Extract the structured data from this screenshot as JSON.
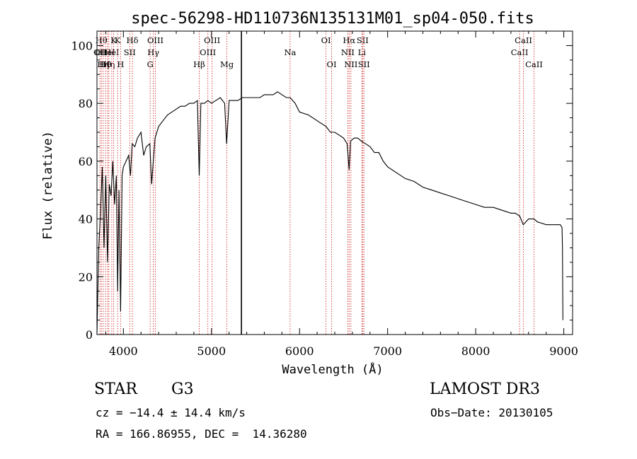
{
  "chart_data": {
    "type": "line",
    "title": "spec-56298-HD110736N135131M01_sp04-050.fits",
    "xlabel": "Wavelength (Å)",
    "ylabel": "Flux (relative)",
    "xlim": [
      3700,
      9100
    ],
    "ylim": [
      0,
      105
    ],
    "xticks": [
      4000,
      5000,
      6000,
      7000,
      8000,
      9000
    ],
    "yticks": [
      0,
      20,
      40,
      60,
      80,
      100
    ],
    "grid": false,
    "series": [
      {
        "name": "flux",
        "x": [
          3700,
          3720,
          3740,
          3760,
          3780,
          3800,
          3820,
          3840,
          3860,
          3880,
          3900,
          3920,
          3935,
          3950,
          3968,
          3985,
          4000,
          4030,
          4060,
          4080,
          4100,
          4130,
          4160,
          4200,
          4230,
          4260,
          4300,
          4320,
          4340,
          4360,
          4400,
          4450,
          4500,
          4550,
          4600,
          4650,
          4700,
          4750,
          4800,
          4840,
          4861,
          4880,
          4920,
          4960,
          5000,
          5050,
          5100,
          5150,
          5172,
          5200,
          5250,
          5300,
          5350,
          5400,
          5450,
          5500,
          5550,
          5600,
          5650,
          5700,
          5750,
          5800,
          5850,
          5893,
          5950,
          6000,
          6100,
          6200,
          6300,
          6350,
          6400,
          6450,
          6500,
          6540,
          6563,
          6580,
          6620,
          6660,
          6700,
          6750,
          6800,
          6850,
          6900,
          6950,
          7000,
          7100,
          7200,
          7300,
          7400,
          7500,
          7600,
          7700,
          7800,
          7900,
          8000,
          8100,
          8200,
          8300,
          8400,
          8450,
          8500,
          8540,
          8600,
          8662,
          8700,
          8800,
          8900,
          8960,
          8980,
          8985,
          8990
        ],
        "values": [
          0,
          30,
          42,
          58,
          30,
          55,
          25,
          52,
          48,
          60,
          45,
          55,
          15,
          50,
          8,
          55,
          58,
          60,
          62,
          55,
          66,
          65,
          68,
          70,
          62,
          65,
          66,
          52,
          60,
          68,
          72,
          74,
          76,
          77,
          78,
          79,
          79,
          80,
          80,
          81,
          55,
          80,
          80,
          81,
          80,
          81,
          82,
          80,
          66,
          81,
          81,
          81,
          82,
          82,
          82,
          82,
          82,
          83,
          83,
          83,
          84,
          83,
          82,
          82,
          80,
          77,
          76,
          74,
          72,
          70,
          70,
          69,
          68,
          66,
          57,
          67,
          68,
          68,
          67,
          66,
          65,
          63,
          63,
          60,
          58,
          56,
          54,
          53,
          51,
          50,
          49,
          48,
          47,
          46,
          45,
          44,
          44,
          43,
          42,
          42,
          41,
          38,
          40,
          40,
          39,
          38,
          38,
          38,
          37,
          30,
          5
        ]
      }
    ],
    "spike": {
      "x": 5340,
      "from": 0,
      "to": 105
    },
    "lines": [
      {
        "x": 3734,
        "label": "OII",
        "row": 2
      },
      {
        "x": 3750,
        "label": "Hθ",
        "row": 1
      },
      {
        "x": 3750,
        "label": "OII",
        "row": 2
      },
      {
        "x": 3771,
        "label": "Hη",
        "row": 3
      },
      {
        "x": 3797,
        "label": "Hθ",
        "row": 3
      },
      {
        "x": 3820,
        "label": "HeI",
        "row": 2
      },
      {
        "x": 3835,
        "label": "Hη",
        "row": 3
      },
      {
        "x": 3868,
        "label": "HeI",
        "row": 2
      },
      {
        "x": 3889,
        "label": "K",
        "row": 1
      },
      {
        "x": 3934,
        "label": "K",
        "row": 1
      },
      {
        "x": 3968,
        "label": "H",
        "row": 3
      },
      {
        "x": 4072,
        "label": "SII",
        "row": 2
      },
      {
        "x": 4102,
        "label": "Hδ",
        "row": 1
      },
      {
        "x": 4304,
        "label": "G",
        "row": 3
      },
      {
        "x": 4340,
        "label": "Hγ",
        "row": 2
      },
      {
        "x": 4363,
        "label": "OIII",
        "row": 1
      },
      {
        "x": 4861,
        "label": "Hβ",
        "row": 3
      },
      {
        "x": 4959,
        "label": "OIII",
        "row": 2
      },
      {
        "x": 5007,
        "label": "OIII",
        "row": 1
      },
      {
        "x": 5175,
        "label": "Mg",
        "row": 3
      },
      {
        "x": 5893,
        "label": "Na",
        "row": 2
      },
      {
        "x": 6300,
        "label": "OI",
        "row": 1
      },
      {
        "x": 6364,
        "label": "OI",
        "row": 3
      },
      {
        "x": 6548,
        "label": "NII",
        "row": 2
      },
      {
        "x": 6563,
        "label": "Hα",
        "row": 1
      },
      {
        "x": 6583,
        "label": "NII",
        "row": 3
      },
      {
        "x": 6708,
        "label": "Li",
        "row": 2
      },
      {
        "x": 6716,
        "label": "SII",
        "row": 1
      },
      {
        "x": 6731,
        "label": "SII",
        "row": 3
      },
      {
        "x": 8498,
        "label": "CaII",
        "row": 2
      },
      {
        "x": 8542,
        "label": "CaII",
        "row": 1
      },
      {
        "x": 8662,
        "label": "CaII",
        "row": 3
      }
    ]
  },
  "footer": {
    "class": "STAR",
    "subclass": "G3",
    "cz": "cz = −14.4 ± 14.4 km/s",
    "coords": "RA = 166.86955, DEC =  14.36280",
    "survey": "LAMOST DR3",
    "obs_date": "Obs−Date: 20130105"
  }
}
